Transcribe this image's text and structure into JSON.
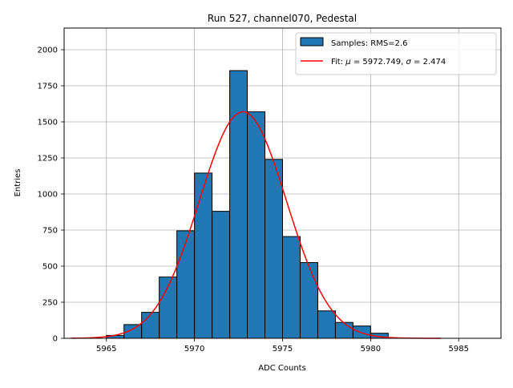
{
  "chart_data": {
    "type": "bar",
    "title": "Run 527, channel070, Pedestal",
    "xlabel": "ADC Counts",
    "ylabel": "Entries",
    "xlim": [
      5962.6,
      5987.4
    ],
    "ylim": [
      0,
      2150
    ],
    "xticks": [
      5965,
      5970,
      5975,
      5980,
      5985
    ],
    "yticks": [
      0,
      250,
      500,
      750,
      1000,
      1250,
      1500,
      1750,
      2000
    ],
    "grid": true,
    "legend_position": "top-right",
    "histogram": {
      "name": "Samples: RMS=2.6",
      "color": "#1f77b4",
      "edge_color": "#000000",
      "bin_width": 1,
      "bin_starts": [
        5965,
        5966,
        5967,
        5968,
        5969,
        5970,
        5971,
        5972,
        5973,
        5974,
        5975,
        5976,
        5977,
        5978,
        5979,
        5980
      ],
      "values": [
        20,
        95,
        180,
        425,
        745,
        1145,
        880,
        1855,
        1570,
        1240,
        705,
        525,
        190,
        110,
        85,
        35
      ]
    },
    "fit": {
      "name_prefix": "Fit: ",
      "mu_value": "5972.749",
      "sigma_value": "2.474",
      "color": "#ff0000",
      "mu": 5972.749,
      "sigma": 2.474,
      "amplitude": 1570,
      "x_range": [
        5963,
        5984
      ]
    }
  }
}
